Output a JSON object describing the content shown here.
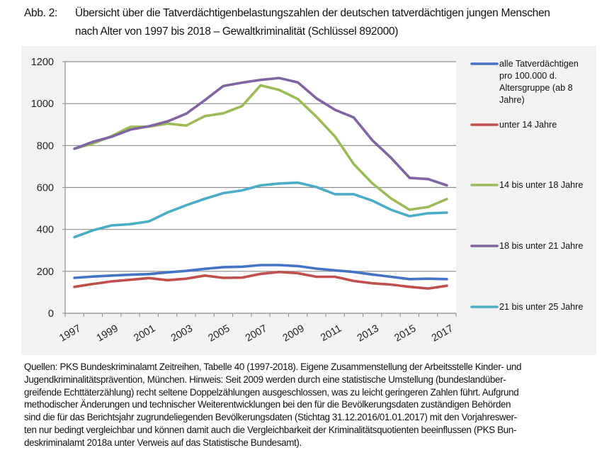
{
  "header": {
    "label": "Abb. 2:",
    "title_line1": "Übersicht über die Tatverdächtigenbelastungszahlen der deutschen tatverdächtigen jungen Menschen",
    "title_line2": "nach Alter von 1997 bis 2018 – Gewaltkriminalität (Schlüssel 892000)"
  },
  "chart_data": {
    "type": "line",
    "title": "",
    "xlabel": "",
    "ylabel": "",
    "ylim": [
      0,
      1200
    ],
    "yticks": [
      0,
      200,
      400,
      600,
      800,
      1000,
      1200
    ],
    "grid": "horizontal",
    "legend_placement": "right",
    "x": [
      1997,
      1998,
      1999,
      2000,
      2001,
      2002,
      2003,
      2004,
      2005,
      2006,
      2007,
      2008,
      2009,
      2010,
      2011,
      2012,
      2013,
      2014,
      2015,
      2016,
      2017
    ],
    "xtick_labels": [
      "1997",
      "1999",
      "2001",
      "2003",
      "2005",
      "2007",
      "2009",
      "2011",
      "2013",
      "2015",
      "2017"
    ],
    "series": [
      {
        "name": "alle Tatverdächtigen pro 100.000 d. Altersgruppe  (ab 8 Jahre)",
        "legend_lines": [
          "alle Tatverdächtigen",
          "pro 100.000 d.",
          "Altersgruppe  (ab 8",
          "Jahre)"
        ],
        "color": "#4472c4",
        "values": [
          169,
          175,
          180,
          184,
          187,
          195,
          202,
          212,
          220,
          222,
          230,
          230,
          225,
          213,
          205,
          197,
          185,
          174,
          163,
          165,
          163
        ]
      },
      {
        "name": "unter 14 Jahre",
        "legend_lines": [
          "unter 14 Jahre"
        ],
        "color": "#c0504d",
        "values": [
          126,
          140,
          152,
          160,
          168,
          158,
          165,
          180,
          169,
          170,
          188,
          197,
          191,
          174,
          174,
          154,
          143,
          137,
          126,
          118,
          131
        ]
      },
      {
        "name": "14 bis unter 18 Jahre",
        "legend_lines": [
          "14 bis unter 18 Jahre"
        ],
        "color": "#9bbb59",
        "values": [
          785,
          810,
          845,
          889,
          890,
          905,
          895,
          940,
          954,
          988,
          1087,
          1065,
          1022,
          937,
          843,
          712,
          620,
          548,
          494,
          507,
          545
        ]
      },
      {
        "name": "18 bis unter 21 Jahre",
        "legend_lines": [
          " 18 bis unter 21 Jahre"
        ],
        "color": "#8064a2",
        "values": [
          785,
          818,
          842,
          876,
          892,
          915,
          952,
          1016,
          1084,
          1100,
          1113,
          1122,
          1101,
          1025,
          970,
          934,
          825,
          742,
          646,
          640,
          610
        ]
      },
      {
        "name": "21 bis unter 25 Jahre",
        "legend_lines": [
          "21 bis unter 25 Jahre"
        ],
        "color": "#4bacc6",
        "values": [
          363,
          396,
          419,
          425,
          438,
          481,
          515,
          546,
          573,
          586,
          610,
          619,
          623,
          602,
          568,
          568,
          537,
          494,
          463,
          477,
          480
        ]
      }
    ]
  },
  "caption": {
    "lines": [
      "Quellen: PKS Bundeskriminalamt Zeitreihen, Tabelle 40 (1997-2018). Eigene Zusammenstellung der Arbeitsstelle Kinder- und",
      "Jugendkriminalitätsprävention, München. Hinweis: Seit 2009 werden durch eine statistische Umstellung (bundeslandüber-",
      "greifende Echttäterzählung) recht seltene Doppelzählungen ausgeschlossen, was zu leicht geringeren Zahlen führt. Aufgrund",
      "methodischer Änderungen und technischer Weiterentwicklungen bei den für die Bevölkerungsdaten zuständigen Behörden",
      "sind die für das Berichtsjahr zugrundeliegenden Bevölkerungsdaten (Stichtag 31.12.2016/01.01.2017) mit den Vorjahreswer-",
      "ten nur bedingt vergleichbar und können damit auch die Vergleichbarkeit der Kriminalitätsquotienten beeinflussen (PKS Bun-",
      "deskriminalamt 2018a unter Verweis auf das Statistische Bundesamt)."
    ]
  }
}
